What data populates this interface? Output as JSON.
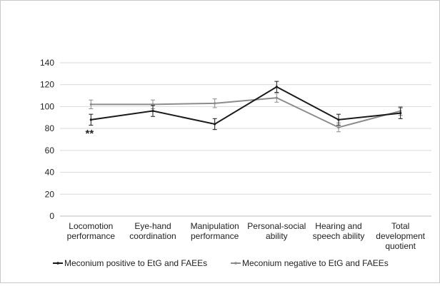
{
  "chart_data": {
    "type": "line",
    "title": "",
    "xlabel": "",
    "ylabel": "",
    "ylim": [
      0,
      140
    ],
    "yticks": [
      0,
      20,
      40,
      60,
      80,
      100,
      120,
      140
    ],
    "grid": true,
    "legend_position": "bottom",
    "categories": [
      [
        "Locomotion",
        "performance"
      ],
      [
        "Eye-hand",
        "coordination"
      ],
      [
        "Manipulation",
        "performance"
      ],
      [
        "Personal-social",
        "ability"
      ],
      [
        "Hearing and",
        "speech ability"
      ],
      [
        "Total",
        "development",
        "quotient"
      ]
    ],
    "series": [
      {
        "name": "Meconium positive to EtG and FAEEs",
        "color": "#1a1a1a",
        "values": [
          88,
          96,
          84,
          118,
          88,
          94
        ],
        "error": [
          5,
          5,
          5,
          5,
          5,
          5
        ]
      },
      {
        "name": "Meconium negative to EtG and FAEEs",
        "color": "#8c8c8c",
        "values": [
          102,
          102,
          103,
          108,
          81,
          96
        ],
        "error": [
          4,
          4,
          4,
          4,
          4,
          4
        ]
      }
    ],
    "annotations": [
      {
        "text": "**",
        "category_index": 0
      }
    ]
  }
}
